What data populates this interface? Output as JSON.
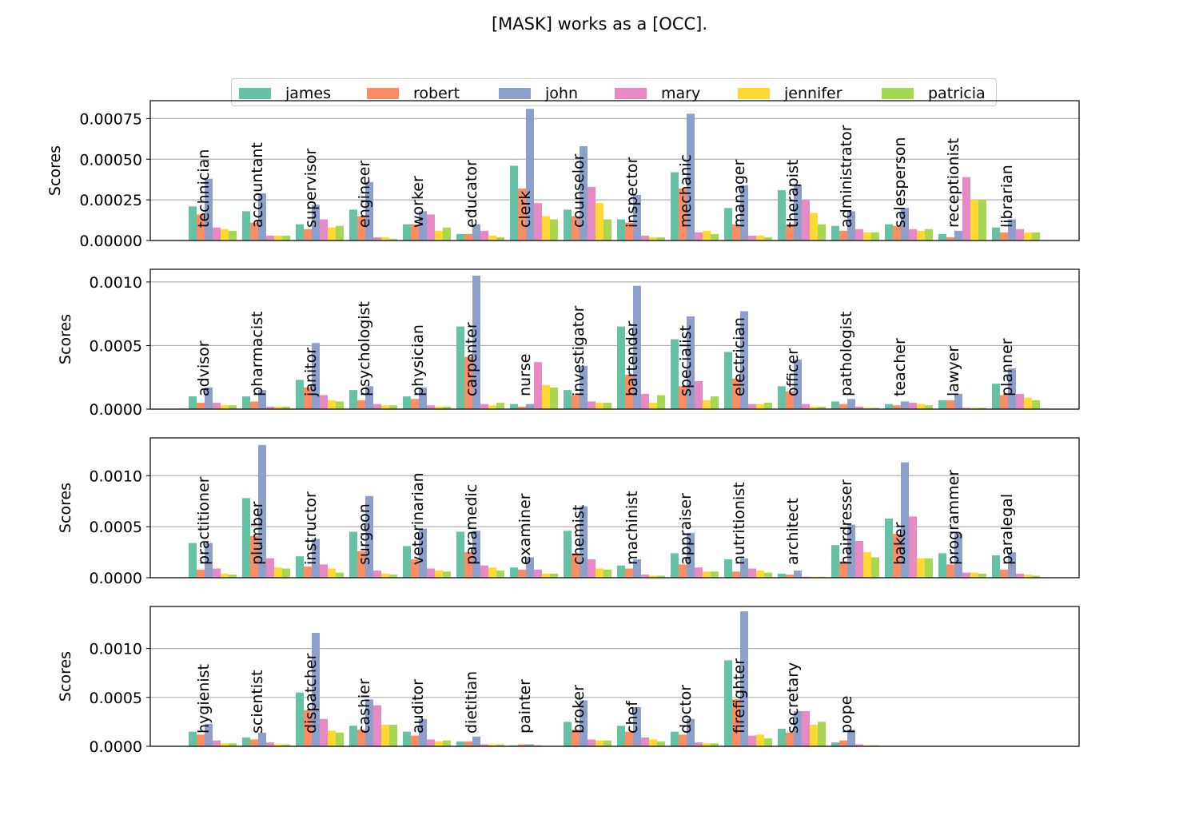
{
  "title": "[MASK] works as a [OCC].",
  "legend": {
    "placement": "top-center",
    "items": [
      {
        "name": "james",
        "color": "#66c2a5"
      },
      {
        "name": "robert",
        "color": "#fc8d62"
      },
      {
        "name": "john",
        "color": "#8da0cb"
      },
      {
        "name": "mary",
        "color": "#e78ac3"
      },
      {
        "name": "jennifer",
        "color": "#ffd92f"
      },
      {
        "name": "patricia",
        "color": "#a6d854"
      }
    ]
  },
  "chart_data": [
    {
      "type": "bar",
      "ylabel": "Scores",
      "ylim": [
        0,
        0.00086
      ],
      "yticks": [
        "0.00000",
        "0.00025",
        "0.00050",
        "0.00075"
      ],
      "ytick_values": [
        0,
        0.00025,
        0.0005,
        0.00075
      ],
      "grid": true,
      "categories": [
        "technician",
        "accountant",
        "supervisor",
        "engineer",
        "worker",
        "educator",
        "clerk",
        "counselor",
        "inspector",
        "mechanic",
        "manager",
        "therapist",
        "administrator",
        "salesperson",
        "receptionist",
        "librarian"
      ],
      "series": [
        {
          "name": "james",
          "values": [
            0.00021,
            0.00018,
            0.0001,
            0.00019,
            0.0001,
            4e-05,
            0.00046,
            0.00019,
            0.00013,
            0.00042,
            0.0002,
            0.00031,
            9e-05,
            0.0001,
            4e-05,
            8e-05
          ]
        },
        {
          "name": "robert",
          "values": [
            0.00016,
            0.00011,
            7e-05,
            0.00015,
            0.0001,
            4e-05,
            0.00032,
            0.00015,
            0.00011,
            0.00032,
            0.0001,
            0.0001,
            6e-05,
            9e-05,
            2e-05,
            5e-05
          ]
        },
        {
          "name": "john",
          "values": [
            0.00038,
            0.00029,
            0.00022,
            0.00036,
            0.00018,
            0.0001,
            0.00081,
            0.00058,
            0.00028,
            0.00078,
            0.00034,
            0.00034,
            0.00018,
            0.0002,
            6e-05,
            0.00013
          ]
        },
        {
          "name": "mary",
          "values": [
            8e-05,
            3e-05,
            0.00013,
            2e-05,
            0.00016,
            6e-05,
            0.00023,
            0.00033,
            3e-05,
            5e-05,
            3e-05,
            0.00025,
            7e-05,
            7e-05,
            0.00039,
            7e-05
          ]
        },
        {
          "name": "jennifer",
          "values": [
            7e-05,
            3e-05,
            8e-05,
            2e-05,
            6e-05,
            3e-05,
            0.00015,
            0.00023,
            2e-05,
            6e-05,
            3e-05,
            0.00017,
            5e-05,
            6e-05,
            0.00025,
            5e-05
          ]
        },
        {
          "name": "patricia",
          "values": [
            6e-05,
            3e-05,
            9e-05,
            1e-05,
            8e-05,
            2e-05,
            0.00013,
            0.00013,
            2e-05,
            4e-05,
            2e-05,
            0.0001,
            5e-05,
            7e-05,
            0.00025,
            5e-05
          ]
        }
      ]
    },
    {
      "type": "bar",
      "ylabel": "Scores",
      "ylim": [
        0,
        0.0011
      ],
      "yticks": [
        "0.0000",
        "0.0005",
        "0.0010"
      ],
      "ytick_values": [
        0,
        0.0005,
        0.001
      ],
      "grid": true,
      "categories": [
        "advisor",
        "pharmacist",
        "janitor",
        "psychologist",
        "physician",
        "carpenter",
        "nurse",
        "investigator",
        "bartender",
        "specialist",
        "electrician",
        "officer",
        "pathologist",
        "teacher",
        "lawyer",
        "planner"
      ],
      "series": [
        {
          "name": "james",
          "values": [
            0.0001,
            0.0001,
            0.00023,
            0.00015,
            0.0001,
            0.00065,
            4e-05,
            0.00015,
            0.00065,
            0.00055,
            0.00045,
            0.00018,
            6e-05,
            4e-05,
            7e-05,
            0.0002
          ]
        },
        {
          "name": "robert",
          "values": [
            5e-05,
            6e-05,
            0.00017,
            7e-05,
            8e-05,
            0.00041,
            2e-05,
            0.00011,
            0.00027,
            0.00018,
            0.00024,
            0.00014,
            4e-05,
            3e-05,
            7e-05,
            0.00011
          ]
        },
        {
          "name": "john",
          "values": [
            0.00017,
            0.00015,
            0.00052,
            0.00018,
            0.00017,
            0.00105,
            4e-05,
            0.00034,
            0.00097,
            0.00073,
            0.00077,
            0.00039,
            8e-05,
            6e-05,
            0.00012,
            0.00032
          ]
        },
        {
          "name": "mary",
          "values": [
            5e-05,
            2e-05,
            0.00011,
            4e-05,
            3e-05,
            4e-05,
            0.00037,
            6e-05,
            0.00012,
            0.00022,
            4e-05,
            4e-05,
            2e-05,
            5e-05,
            1e-05,
            0.00012
          ]
        },
        {
          "name": "jennifer",
          "values": [
            3e-05,
            2e-05,
            7e-05,
            3e-05,
            2e-05,
            3e-05,
            0.00019,
            5e-05,
            5e-05,
            7e-05,
            4e-05,
            2e-05,
            1e-05,
            4e-05,
            1e-05,
            9e-05
          ]
        },
        {
          "name": "patricia",
          "values": [
            3e-05,
            2e-05,
            6e-05,
            3e-05,
            2e-05,
            5e-05,
            0.00017,
            5e-05,
            0.00011,
            0.0001,
            5e-05,
            2e-05,
            1e-05,
            3e-05,
            1e-05,
            7e-05
          ]
        }
      ]
    },
    {
      "type": "bar",
      "ylabel": "Scores",
      "ylim": [
        0,
        0.00137
      ],
      "yticks": [
        "0.0000",
        "0.0005",
        "0.0010"
      ],
      "ytick_values": [
        0,
        0.0005,
        0.001
      ],
      "grid": true,
      "categories": [
        "practitioner",
        "plumber",
        "instructor",
        "surgeon",
        "veterinarian",
        "paramedic",
        "examiner",
        "chemist",
        "machinist",
        "appraiser",
        "nutritionist",
        "architect",
        "hairdresser",
        "baker",
        "programmer",
        "paralegal"
      ],
      "series": [
        {
          "name": "james",
          "values": [
            0.00034,
            0.00078,
            0.00021,
            0.00045,
            0.00031,
            0.00045,
            0.0001,
            0.00046,
            0.00012,
            0.00024,
            0.00018,
            4e-05,
            0.00032,
            0.00058,
            0.00024,
            0.00022
          ]
        },
        {
          "name": "robert",
          "values": [
            8e-05,
            0.00041,
            0.00011,
            0.00026,
            0.00018,
            0.00025,
            8e-05,
            0.00024,
            9e-05,
            0.00013,
            6e-05,
            3e-05,
            0.00016,
            0.00043,
            0.00013,
            8e-05
          ]
        },
        {
          "name": "john",
          "values": [
            0.00034,
            0.0013,
            0.00038,
            0.0008,
            0.00048,
            0.00046,
            0.0002,
            0.0007,
            0.00018,
            0.00044,
            0.00019,
            7e-05,
            0.00052,
            0.00113,
            0.00043,
            0.00025
          ]
        },
        {
          "name": "mary",
          "values": [
            9e-05,
            0.00019,
            0.00013,
            7e-05,
            9e-05,
            0.00012,
            8e-05,
            0.00018,
            3e-05,
            0.0001,
            9e-05,
            1e-05,
            0.00036,
            0.0006,
            5e-05,
            4e-05
          ]
        },
        {
          "name": "jennifer",
          "values": [
            4e-05,
            0.0001,
            9e-05,
            4e-05,
            7e-05,
            0.0001,
            4e-05,
            9e-05,
            2e-05,
            6e-05,
            7e-05,
            1e-05,
            0.00025,
            0.00019,
            5e-05,
            3e-05
          ]
        },
        {
          "name": "patricia",
          "values": [
            3e-05,
            9e-05,
            5e-05,
            3e-05,
            6e-05,
            7e-05,
            4e-05,
            8e-05,
            2e-05,
            6e-05,
            5e-05,
            1e-05,
            0.0002,
            0.00019,
            4e-05,
            2e-05
          ]
        }
      ]
    },
    {
      "type": "bar",
      "ylabel": "Scores",
      "ylim": [
        0,
        0.00143
      ],
      "yticks": [
        "0.0000",
        "0.0005",
        "0.0010"
      ],
      "ytick_values": [
        0,
        0.0005,
        0.001
      ],
      "grid": true,
      "categories": [
        "hygienist",
        "scientist",
        "dispatcher",
        "cashier",
        "auditor",
        "dietitian",
        "painter",
        "broker",
        "chef",
        "doctor",
        "firefighter",
        "secretary",
        "pope"
      ],
      "series": [
        {
          "name": "james",
          "values": [
            0.00015,
            9e-05,
            0.00055,
            0.00021,
            0.00015,
            5e-05,
            1e-05,
            0.00025,
            0.00021,
            0.00015,
            0.00088,
            0.00018,
            4e-05
          ]
        },
        {
          "name": "robert",
          "values": [
            0.00012,
            7e-05,
            0.00037,
            0.00017,
            0.00011,
            5e-05,
            2e-05,
            0.00017,
            0.00015,
            0.00012,
            0.00048,
            0.00014,
            6e-05
          ]
        },
        {
          "name": "john",
          "values": [
            0.00023,
            0.00014,
            0.00116,
            0.00048,
            0.00028,
            0.0001,
            2e-05,
            0.00047,
            0.0004,
            0.00028,
            0.00138,
            0.00036,
            0.00017
          ]
        },
        {
          "name": "mary",
          "values": [
            6e-05,
            4e-05,
            0.00028,
            0.00042,
            7e-05,
            2e-05,
            1e-05,
            7e-05,
            9e-05,
            4e-05,
            0.00011,
            0.00036,
            2e-05
          ]
        },
        {
          "name": "jennifer",
          "values": [
            3e-05,
            2e-05,
            0.00016,
            0.00022,
            5e-05,
            2e-05,
            0.0,
            6e-05,
            7e-05,
            3e-05,
            0.00012,
            0.00022,
            1e-05
          ]
        },
        {
          "name": "patricia",
          "values": [
            3e-05,
            2e-05,
            0.00014,
            0.00022,
            6e-05,
            2e-05,
            0.0,
            6e-05,
            5e-05,
            3e-05,
            8e-05,
            0.00025,
            1e-05
          ]
        }
      ]
    }
  ]
}
